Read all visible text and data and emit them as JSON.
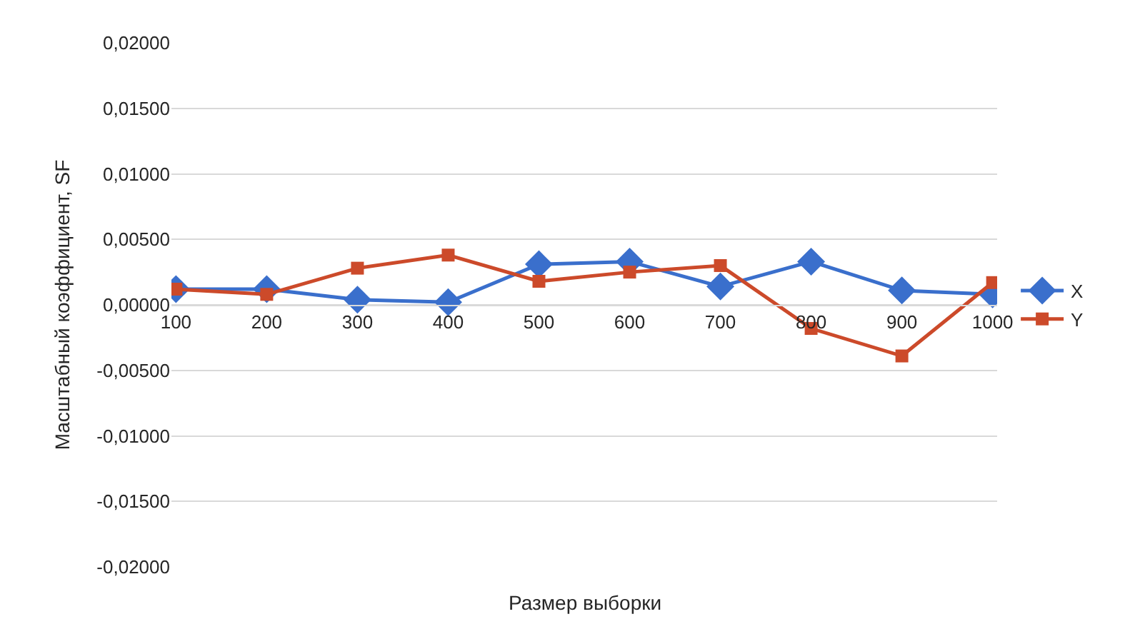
{
  "chart_data": {
    "type": "line",
    "xlabel": "Размер выборки",
    "ylabel": "Масштабный коэффициент, SF",
    "categories": [
      "100",
      "200",
      "300",
      "400",
      "500",
      "600",
      "700",
      "800",
      "900",
      "1000"
    ],
    "series": [
      {
        "name": "X",
        "color": "#3a6fcc",
        "marker": "diamond",
        "values": [
          0.0012,
          0.0012,
          0.0004,
          0.0002,
          0.0031,
          0.0033,
          0.0014,
          0.0033,
          0.0011,
          0.0008
        ]
      },
      {
        "name": "Y",
        "color": "#cc4a2a",
        "marker": "square",
        "values": [
          0.0012,
          0.0008,
          0.0028,
          0.0038,
          0.0018,
          0.0025,
          0.003,
          -0.0018,
          -0.0039,
          0.0017
        ]
      }
    ],
    "ylim": [
      -0.02,
      0.02
    ],
    "yticks": [
      {
        "value": -0.02,
        "label": "-0,02000"
      },
      {
        "value": -0.015,
        "label": "-0,01500"
      },
      {
        "value": -0.01,
        "label": "-0,01000"
      },
      {
        "value": -0.005,
        "label": "-0,00500"
      },
      {
        "value": 0,
        "label": "0,00000"
      },
      {
        "value": 0.005,
        "label": "0,00500"
      },
      {
        "value": 0.01,
        "label": "0,01000"
      },
      {
        "value": 0.015,
        "label": "0,01500"
      },
      {
        "value": 0.02,
        "label": "0,02000"
      }
    ],
    "grid": "y",
    "legend": "right",
    "line_style": "solid"
  }
}
